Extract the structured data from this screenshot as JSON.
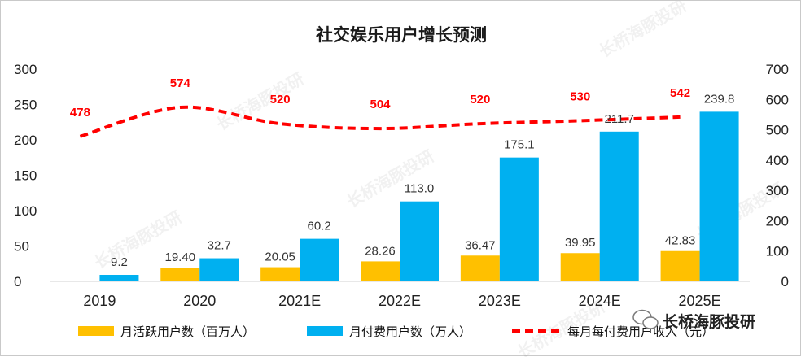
{
  "chart_data": {
    "type": "bar+line",
    "title": "社交娱乐用户增长预测",
    "categories": [
      "2019",
      "2020",
      "2021E",
      "2022E",
      "2023E",
      "2024E",
      "2025E"
    ],
    "series": [
      {
        "name": "月活跃用户数（百万人）",
        "type": "bar",
        "axis": "left",
        "color": "#ffc000",
        "values": [
          null,
          19.4,
          20.05,
          28.26,
          36.47,
          39.95,
          42.83
        ],
        "labels": [
          "",
          "19.40",
          "20.05",
          "28.26",
          "36.47",
          "39.95",
          "42.83"
        ]
      },
      {
        "name": "月付费用户数（万人）",
        "type": "bar",
        "axis": "left",
        "color": "#00b0f0",
        "values": [
          9.2,
          32.7,
          60.2,
          113.0,
          175.1,
          211.7,
          239.8
        ],
        "labels": [
          "9.2",
          "32.7",
          "60.2",
          "113.0",
          "175.1",
          "211.7",
          "239.8"
        ]
      },
      {
        "name": "每月每付费用户收入（元）",
        "type": "line",
        "axis": "right",
        "color": "#ff0000",
        "style": "dashed",
        "values": [
          478,
          574,
          520,
          504,
          520,
          530,
          542
        ],
        "labels": [
          "478",
          "574",
          "520",
          "504",
          "520",
          "530",
          "542"
        ]
      }
    ],
    "y_left": {
      "min": 0,
      "max": 300,
      "step": 50,
      "ticks": [
        "0",
        "50",
        "100",
        "150",
        "200",
        "250",
        "300"
      ]
    },
    "y_right": {
      "min": 0,
      "max": 700,
      "step": 100,
      "ticks": [
        "0",
        "100",
        "200",
        "300",
        "400",
        "500",
        "600",
        "700"
      ]
    },
    "legend_position": "bottom",
    "grid": false
  },
  "watermark": "长桥海豚投研",
  "logo": {
    "icon": "wechat-icon",
    "text": "长桥海豚投研"
  }
}
